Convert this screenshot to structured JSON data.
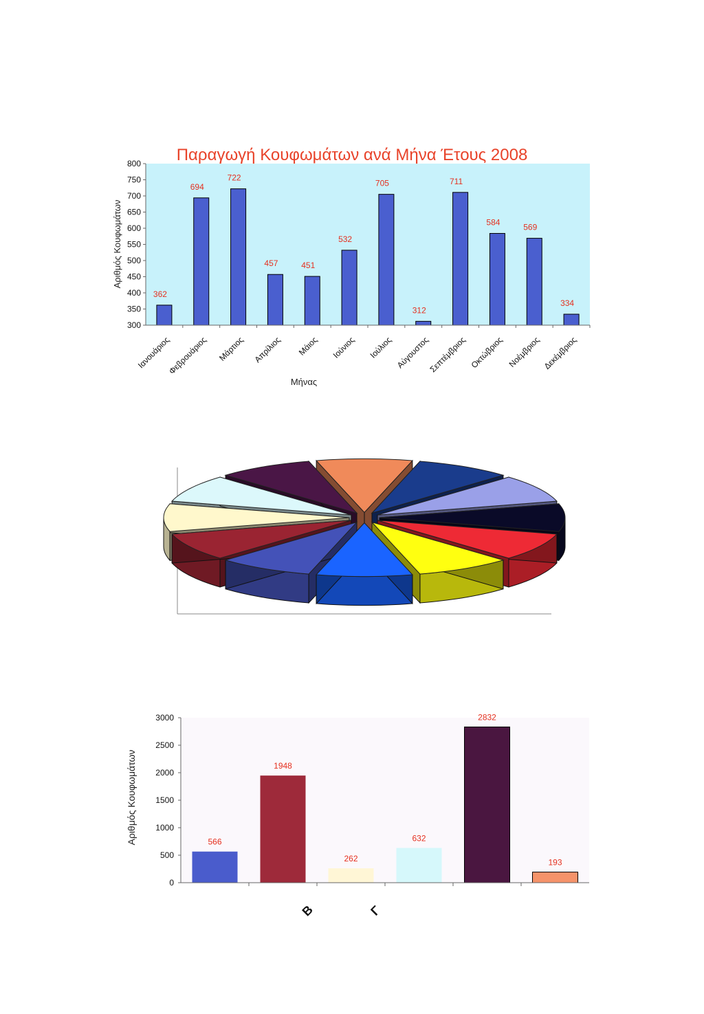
{
  "chart_data": [
    {
      "type": "bar",
      "title": "Παραγωγή Κουφωμάτων ανά Μήνα Έτους 2008",
      "xlabel": "Μήνας",
      "ylabel": "Αριθμός Κουφωμάτων",
      "categories": [
        "Ιανουάριος",
        "Φεβρουάριος",
        "Μάρτιος",
        "Απρίλιος",
        "Μάιος",
        "Ιούνιος",
        "Ιούλιος",
        "Αύγουστος",
        "Σεπτέμβριος",
        "Οκτώβριος",
        "Νοέμβριος",
        "Δεκέμβριος"
      ],
      "values": [
        362,
        694,
        722,
        457,
        451,
        532,
        705,
        312,
        711,
        584,
        569,
        334
      ],
      "ylim": [
        300,
        800
      ],
      "yticks": [
        300,
        350,
        400,
        450,
        500,
        550,
        600,
        650,
        700,
        750,
        800
      ],
      "grid": false,
      "colors": {
        "bar": "#4a5fcf",
        "plot_bg": "#c8f2fb",
        "label": "#e5301f",
        "title": "#e8432a"
      }
    },
    {
      "type": "pie",
      "style": "3d-exploded",
      "slices": [
        {
          "value": 1,
          "color": "#f08a5a"
        },
        {
          "value": 1,
          "color": "#1a3c8c"
        },
        {
          "value": 1,
          "color": "#9aa0e8"
        },
        {
          "value": 1,
          "color": "#0a0a28"
        },
        {
          "value": 1,
          "color": "#ee2a35"
        },
        {
          "value": 1,
          "color": "#ffff10"
        },
        {
          "value": 1,
          "color": "#1a64ff"
        },
        {
          "value": 1,
          "color": "#4452b8"
        },
        {
          "value": 1,
          "color": "#9a2432"
        },
        {
          "value": 1,
          "color": "#fff8cc"
        },
        {
          "value": 1,
          "color": "#dcf8fb"
        },
        {
          "value": 1,
          "color": "#4a1646"
        }
      ]
    },
    {
      "type": "bar",
      "ylabel": "Αριθμός Κουφωμάτων",
      "categories": [
        "",
        "Β",
        "Γ",
        "",
        "",
        ""
      ],
      "values": [
        566,
        1948,
        262,
        632,
        2832,
        193
      ],
      "value_labels": [
        "566",
        "1948",
        "262",
        "632",
        "2832",
        "193"
      ],
      "ylim": [
        0,
        3000
      ],
      "yticks": [
        0,
        500,
        1000,
        1500,
        2000,
        2500,
        3000
      ],
      "grid": false,
      "colors": {
        "bars": [
          "#4a5ccc",
          "#9e2a3a",
          "#fff6d6",
          "#d6f8fb",
          "#4a1640",
          "#f5936a"
        ],
        "label": "#e5301f"
      }
    }
  ]
}
